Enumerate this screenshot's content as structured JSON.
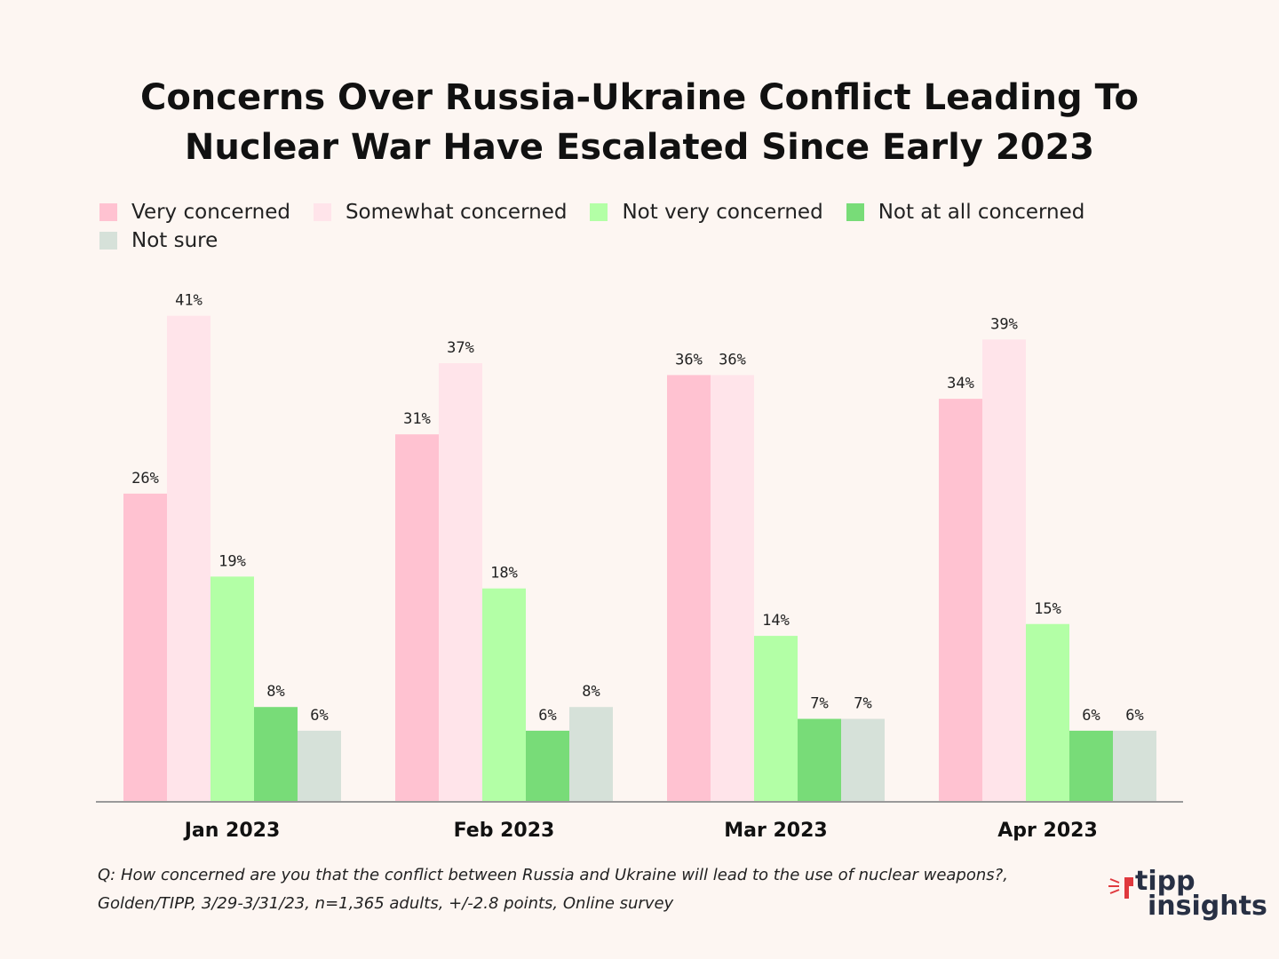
{
  "title_lines": [
    "Concerns Over Russia-Ukraine Conflict Leading To",
    "Nuclear War Have Escalated Since Early 2023"
  ],
  "legend": [
    {
      "label": "Very concerned",
      "color": "#ffc2d1"
    },
    {
      "label": "Somewhat concerned",
      "color": "#ffe4ea"
    },
    {
      "label": "Not very concerned",
      "color": "#b3ffa6"
    },
    {
      "label": "Not at all concerned",
      "color": "#78dc78"
    },
    {
      "label": "Not sure",
      "color": "#d6e1d9"
    }
  ],
  "chart_data": {
    "type": "bar",
    "title": "Concerns Over Russia-Ukraine Conflict Leading To Nuclear War Have Escalated Since Early 2023",
    "categories": [
      "Jan 2023",
      "Feb 2023",
      "Mar 2023",
      "Apr 2023"
    ],
    "series": [
      {
        "name": "Very concerned",
        "color": "#ffc2d1",
        "values": [
          26,
          31,
          36,
          34
        ]
      },
      {
        "name": "Somewhat concerned",
        "color": "#ffe4ea",
        "values": [
          41,
          37,
          36,
          39
        ]
      },
      {
        "name": "Not very concerned",
        "color": "#b3ffa6",
        "values": [
          19,
          18,
          14,
          15
        ]
      },
      {
        "name": "Not at all concerned",
        "color": "#78dc78",
        "values": [
          8,
          6,
          7,
          6
        ]
      },
      {
        "name": "Not sure",
        "color": "#d6e1d9",
        "values": [
          6,
          8,
          7,
          6
        ]
      }
    ],
    "value_suffix": "%",
    "xlabel": "",
    "ylabel": "",
    "ylim": [
      0,
      41
    ],
    "grid": false,
    "legend_position": "top-left"
  },
  "footnote_lines": [
    "Q: How concerned are you that the conflict between Russia and Ukraine will lead to the use of nuclear weapons?,",
    "Golden/TIPP, 3/29-3/31/23, n=1,365 adults, +/-2.8 points, Online survey"
  ],
  "logo": {
    "line1": "tipp",
    "line2": "insights",
    "accent": "#e0393e",
    "text_color": "#283044"
  }
}
